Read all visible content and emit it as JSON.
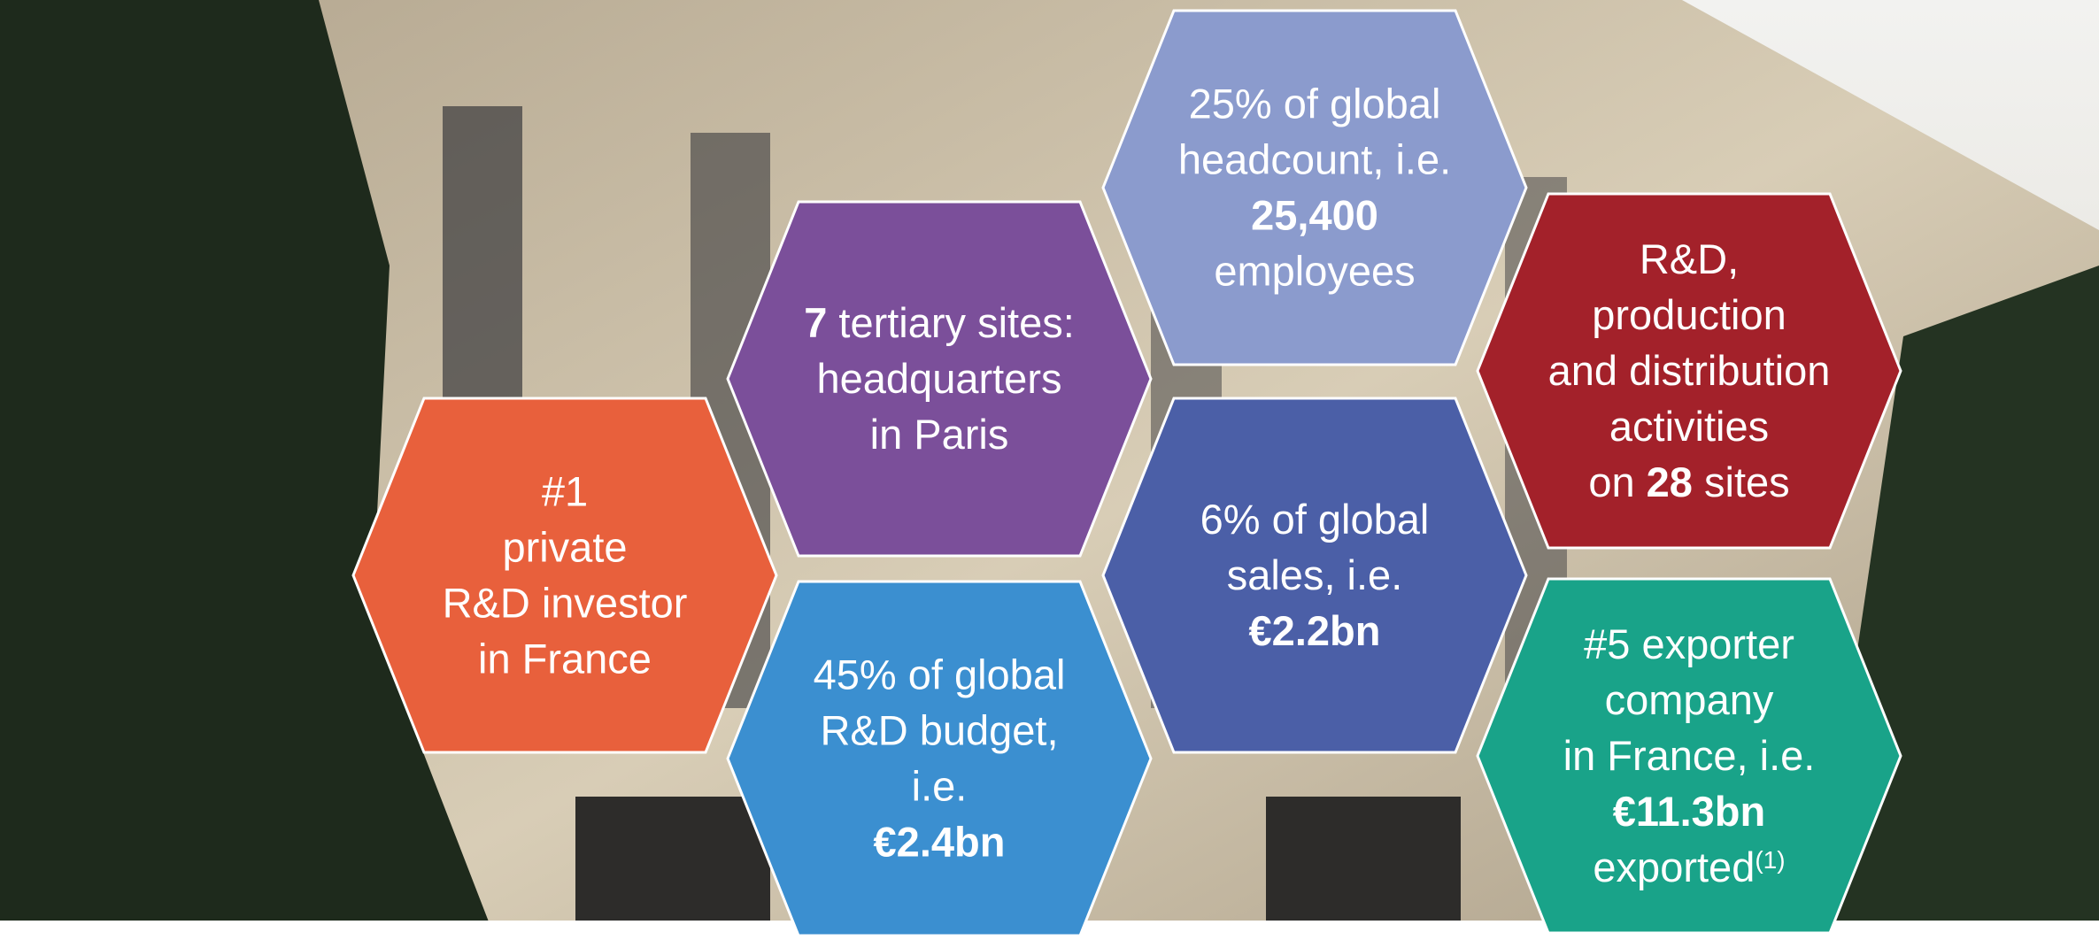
{
  "hexagons": [
    {
      "color": "#e8603c",
      "lines": [
        [
          {
            "text": "#1"
          }
        ],
        [
          {
            "text": "private"
          }
        ],
        [
          {
            "text": "R&D investor"
          }
        ],
        [
          {
            "text": "in France"
          }
        ]
      ]
    },
    {
      "color": "#7b4f9a",
      "lines": [
        [
          {
            "text": "7",
            "bold": true
          },
          {
            "text": " tertiary sites:"
          }
        ],
        [
          {
            "text": "headquarters"
          }
        ],
        [
          {
            "text": "in Paris"
          }
        ]
      ]
    },
    {
      "color": "#3b8fd0",
      "lines": [
        [
          {
            "text": "45% of global"
          }
        ],
        [
          {
            "text": "R&D budget,"
          }
        ],
        [
          {
            "text": "i.e."
          }
        ],
        [
          {
            "text": "€2.4bn",
            "bold": true
          }
        ]
      ]
    },
    {
      "color": "#8b9bcd",
      "lines": [
        [
          {
            "text": "25% of global"
          }
        ],
        [
          {
            "text": "headcount, i.e."
          }
        ],
        [
          {
            "text": "25,400",
            "bold": true
          }
        ],
        [
          {
            "text": "employees"
          }
        ]
      ]
    },
    {
      "color": "#4b5fa7",
      "lines": [
        [
          {
            "text": "6% of global"
          }
        ],
        [
          {
            "text": "sales, i.e."
          }
        ],
        [
          {
            "text": "€2.2bn",
            "bold": true
          }
        ]
      ]
    },
    {
      "color": "#a3212a",
      "lines": [
        [
          {
            "text": "R&D,"
          }
        ],
        [
          {
            "text": "production"
          }
        ],
        [
          {
            "text": "and distribution"
          }
        ],
        [
          {
            "text": "activities"
          }
        ],
        [
          {
            "text": "on "
          },
          {
            "text": "28",
            "bold": true
          },
          {
            "text": " sites"
          }
        ]
      ]
    },
    {
      "color": "#19a389",
      "lines": [
        [
          {
            "text": "#5 exporter"
          }
        ],
        [
          {
            "text": "company"
          }
        ],
        [
          {
            "text": "in France, i.e."
          }
        ],
        [
          {
            "text": "€11.3bn",
            "bold": true
          }
        ],
        [
          {
            "text": "exported"
          },
          {
            "text": "(1)",
            "sup": true
          }
        ]
      ]
    }
  ]
}
